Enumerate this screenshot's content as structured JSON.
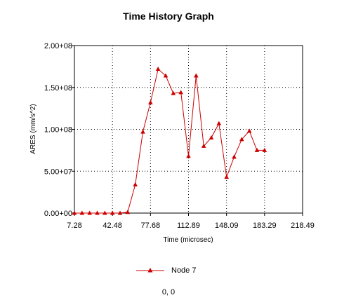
{
  "chart_data": {
    "type": "line",
    "title": "Time History Graph",
    "xlabel": "Time (microsec)",
    "ylabel": "ARES (mm/s^2)",
    "xlim": [
      7.28,
      218.49
    ],
    "ylim": [
      0,
      200000000
    ],
    "x_ticks": [
      "7.28",
      "42.48",
      "77.68",
      "112.89",
      "148.09",
      "183.29",
      "218.49"
    ],
    "y_ticks": [
      "0.00+00",
      "5.00+07",
      "1.00+08",
      "1.50+08",
      "2.00+08"
    ],
    "grid": true,
    "legend_position": "bottom",
    "series": [
      {
        "name": "Node 7",
        "color": "#cc0000",
        "marker": "triangle",
        "x": [
          7.28,
          14.32,
          21.36,
          28.4,
          35.44,
          42.48,
          49.52,
          56.56,
          63.6,
          70.64,
          77.68,
          84.72,
          91.76,
          98.8,
          105.84,
          112.89,
          119.93,
          126.97,
          134.01,
          141.05,
          148.09,
          155.13,
          162.17,
          169.21,
          176.25,
          183.29
        ],
        "y": [
          0,
          0,
          0,
          0,
          0,
          0,
          0,
          1000000,
          34000000,
          97000000,
          132000000,
          172000000,
          164000000,
          143000000,
          144000000,
          68000000,
          164000000,
          80000000,
          90000000,
          107000000,
          43000000,
          67000000,
          88000000,
          98000000,
          75000000,
          75000000
        ]
      }
    ]
  },
  "coordinate_readout": "0, 0"
}
